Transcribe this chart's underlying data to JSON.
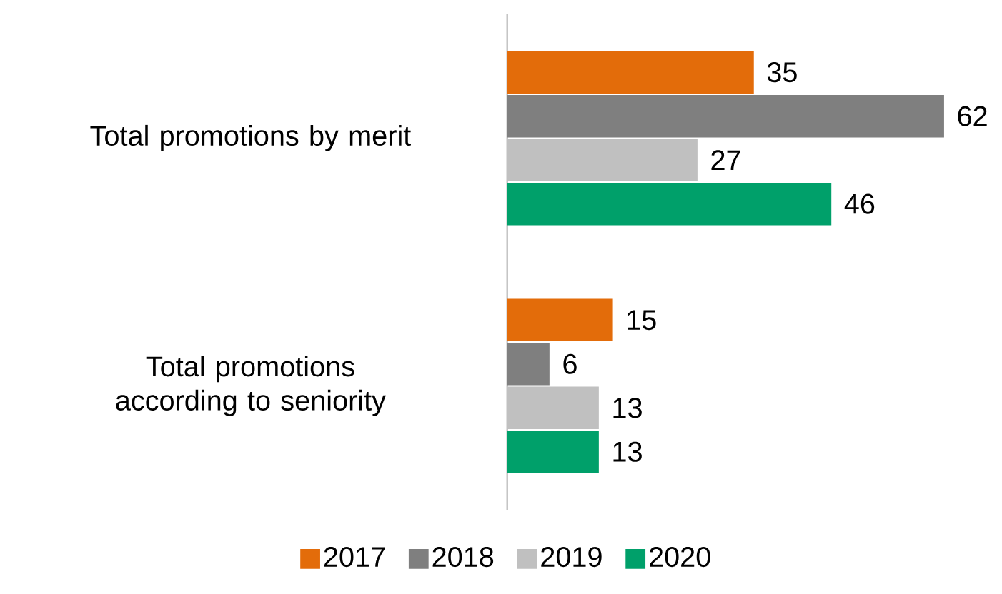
{
  "chart_data": {
    "type": "bar",
    "orientation": "horizontal",
    "categories": [
      "Total promotions by merit",
      "Total promotions according to seniority"
    ],
    "series": [
      {
        "name": "2017",
        "color": "#e36c0a",
        "values": [
          35,
          15
        ]
      },
      {
        "name": "2018",
        "color": "#7f7f7f",
        "values": [
          62,
          6
        ]
      },
      {
        "name": "2019",
        "color": "#c0c0c0",
        "values": [
          27,
          13
        ]
      },
      {
        "name": "2020",
        "color": "#00a06a",
        "values": [
          46,
          13
        ]
      }
    ],
    "data_labels": true,
    "legend": "bottom"
  }
}
